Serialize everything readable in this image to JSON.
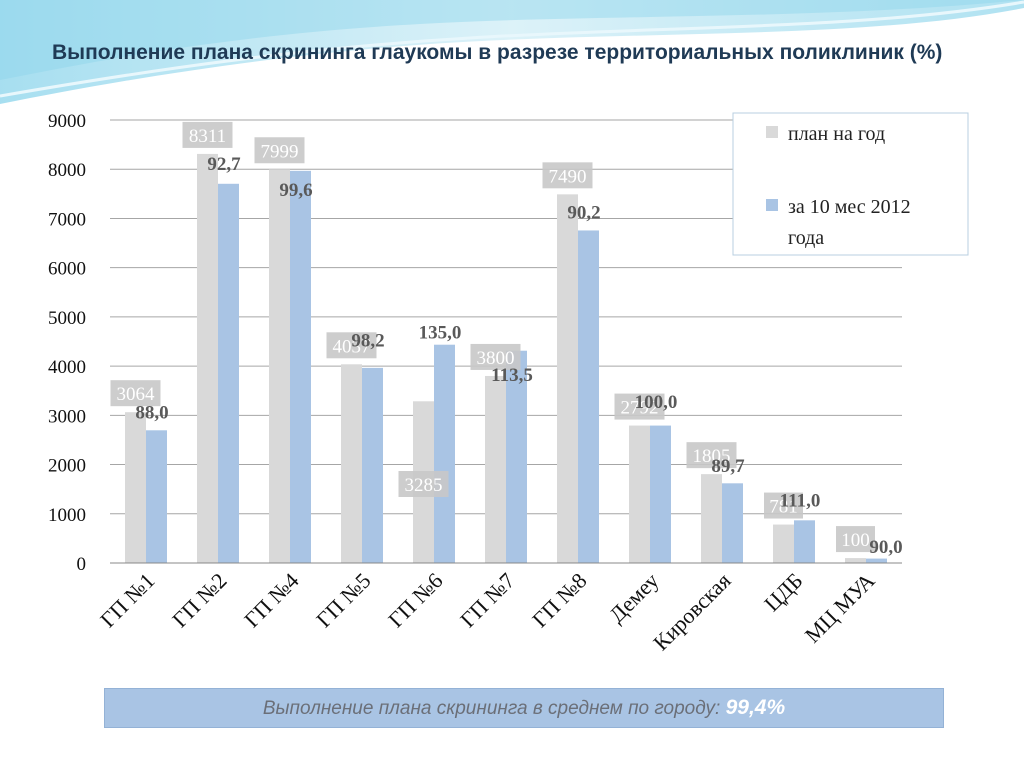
{
  "title": "Выполнение плана скрининга глаукомы в разрезе территориальных поликлиник (%)",
  "chart_data": {
    "type": "bar",
    "categories": [
      "ГП №1",
      "ГП №2",
      "ГП №4",
      "ГП №5",
      "ГП №6",
      "ГП  №7",
      "ГП №8",
      "Демеу",
      "Кировская",
      "ЦДБ",
      "МЦ МУА"
    ],
    "series": [
      {
        "name": "план на год",
        "values": [
          3064,
          8311,
          7999,
          4037,
          3285,
          3800,
          7490,
          2792,
          1805,
          781,
          100
        ],
        "color": "#d9d9d9"
      },
      {
        "name": "за 10 мес 2012 года",
        "values": [
          2696,
          7704,
          7967,
          3964,
          4435,
          4313,
          6756,
          2792,
          1619,
          867,
          90
        ],
        "color": "#a9c4e4"
      }
    ],
    "plan_labels": [
      "3064",
      "8311",
      "7999",
      "4037",
      "3285",
      "3800",
      "7490",
      "2792",
      "1805",
      "781",
      "100"
    ],
    "percent_labels": [
      "88,0",
      "92,7",
      "99,6",
      "98,2",
      "135,0",
      "113,5",
      "90,2",
      "100,0",
      "89,7",
      "111,0",
      "90,0"
    ],
    "ylim": [
      0,
      9000
    ],
    "yticks": [
      "0",
      "1000",
      "2000",
      "3000",
      "4000",
      "5000",
      "6000",
      "7000",
      "8000",
      "9000"
    ],
    "xlabel": "",
    "ylabel": "",
    "grid": true,
    "legend_position": "top-right",
    "legend_labels": [
      "план на год",
      "за 10 мес 2012",
      "года"
    ]
  },
  "footer": {
    "text": "Выполнение плана скрининга в среднем по городу: ",
    "value": "99,4%"
  }
}
